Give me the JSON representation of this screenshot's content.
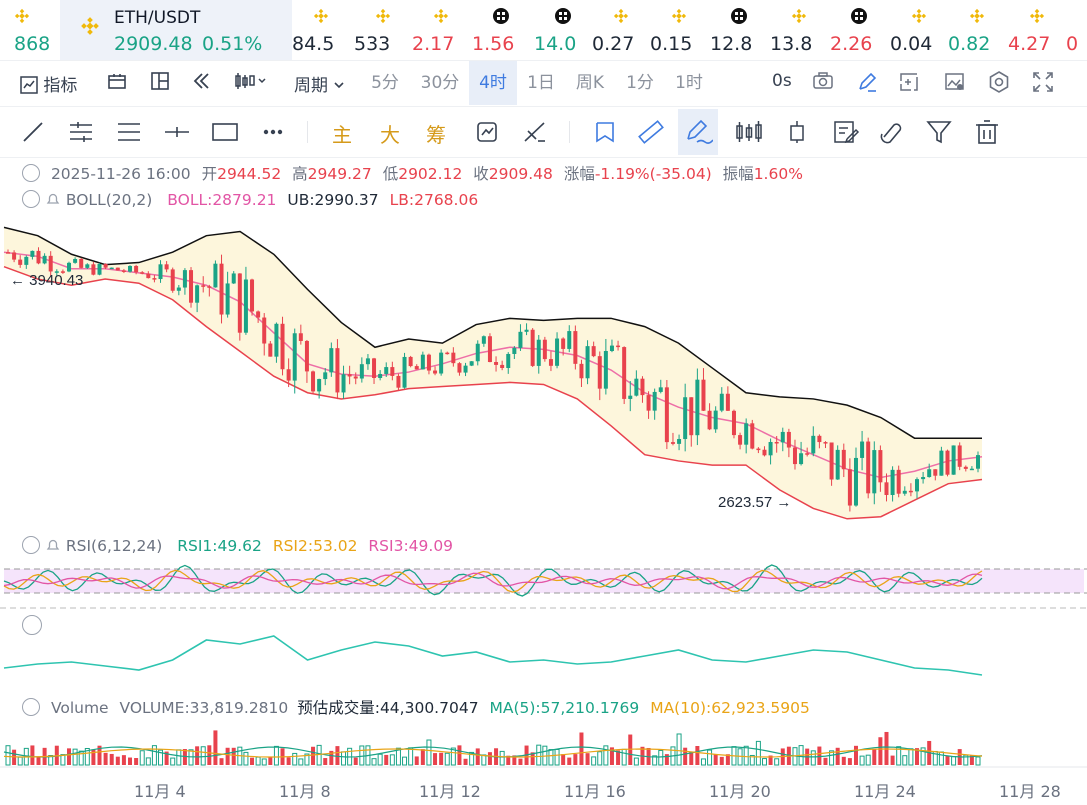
{
  "ticker": {
    "cells": [
      {
        "value": "868",
        "color": "#1aa386",
        "icon": "bnb-icon"
      },
      {
        "value": "84.5",
        "color": "#1f2937",
        "icon": "bnb-icon"
      },
      {
        "value": "533",
        "color": "#1f2937",
        "icon": "bnb-icon"
      },
      {
        "value": "2.17",
        "color": "#e8424d",
        "icon": "bnb-icon"
      },
      {
        "value": "1.56",
        "color": "#e8424d",
        "icon": "checker-icon"
      },
      {
        "value": "14.0",
        "color": "#1aa386",
        "icon": "checker-icon"
      },
      {
        "value": "0.27",
        "color": "#1f2937",
        "icon": "bnb-icon"
      },
      {
        "value": "0.15",
        "color": "#1f2937",
        "icon": "bnb-icon"
      },
      {
        "value": "12.8",
        "color": "#1f2937",
        "icon": "checker-icon"
      },
      {
        "value": "13.8",
        "color": "#1f2937",
        "icon": "bnb-icon"
      },
      {
        "value": "2.26",
        "color": "#e8424d",
        "icon": "checker-icon"
      },
      {
        "value": "0.04",
        "color": "#1f2937",
        "icon": "bnb-icon"
      },
      {
        "value": "0.82",
        "color": "#1aa386",
        "icon": "bnb-icon"
      },
      {
        "value": "4.27",
        "color": "#e8424d",
        "icon": "bnb-icon"
      },
      {
        "value": "0",
        "color": "#e8424d",
        "icon": "bnb-icon"
      }
    ],
    "active": {
      "pair": "ETH/USDT",
      "price": "2909.48",
      "change": "0.51%"
    }
  },
  "toolbar": {
    "indicators": "指标",
    "period": "周期",
    "timeframes": [
      "5分",
      "30分",
      "4时",
      "1日",
      "周K",
      "1分",
      "1时"
    ],
    "active_timeframe": "4时",
    "countdown": "0s",
    "draw_labels": [
      "主",
      "大",
      "筹"
    ]
  },
  "ohlc": {
    "datetime": "2025-11-26 16:00",
    "open_label": "开",
    "open": "2944.52",
    "high_label": "高",
    "high": "2949.27",
    "low_label": "低",
    "low": "2902.12",
    "close_label": "收",
    "close": "2909.48",
    "change_label": "涨幅",
    "change": "-1.19%(-35.04)",
    "amp_label": "振幅",
    "amp": "1.60%"
  },
  "boll": {
    "label": "BOLL(20,2)",
    "mid": "BOLL:2879.21",
    "ub": "UB:2990.37",
    "lb": "LB:2768.06"
  },
  "rsi": {
    "label": "RSI(6,12,24)",
    "rsi1": "RSI1:49.62",
    "rsi2": "RSI2:53.02",
    "rsi3": "RSI3:49.09"
  },
  "volume": {
    "label": "Volume",
    "value": "VOLUME:33,819.2810",
    "est": "预估成交量:44,300.7047",
    "ma5": "MA(5):57,210.1769",
    "ma10": "MA(10):62,923.5905"
  },
  "chart_data": {
    "type": "candlestick",
    "symbol": "ETH/USDT",
    "interval": "4H",
    "x_ticks": [
      "11月 4",
      "11月 8",
      "11月 12",
      "11月 16",
      "11月 20",
      "11月 24",
      "11月 28"
    ],
    "price_range": [
      2560,
      4060
    ],
    "max_marker": "3940.43",
    "min_marker": "2623.57",
    "boll_upper_approx": [
      4000,
      3960,
      3870,
      3820,
      3830,
      3880,
      3960,
      3980,
      3870,
      3700,
      3540,
      3420,
      3460,
      3440,
      3530,
      3560,
      3550,
      3560,
      3560,
      3520,
      3440,
      3320,
      3200,
      3180,
      3170,
      3140,
      3080,
      2980,
      2980,
      2980
    ],
    "boll_mid_approx": [
      3880,
      3860,
      3800,
      3800,
      3780,
      3760,
      3720,
      3640,
      3490,
      3340,
      3290,
      3280,
      3300,
      3340,
      3390,
      3420,
      3410,
      3380,
      3310,
      3200,
      3130,
      3080,
      3050,
      2970,
      2900,
      2830,
      2790,
      2820,
      2870,
      2890
    ],
    "boll_lower_approx": [
      3810,
      3750,
      3720,
      3750,
      3730,
      3650,
      3520,
      3400,
      3280,
      3200,
      3170,
      3190,
      3220,
      3230,
      3240,
      3250,
      3240,
      3170,
      3040,
      2900,
      2870,
      2850,
      2850,
      2730,
      2640,
      2590,
      2600,
      2680,
      2760,
      2780
    ],
    "rsi_range": [
      0,
      100
    ],
    "volume_ma5": "57,210.1769",
    "volume_ma10": "62,923.5905"
  }
}
